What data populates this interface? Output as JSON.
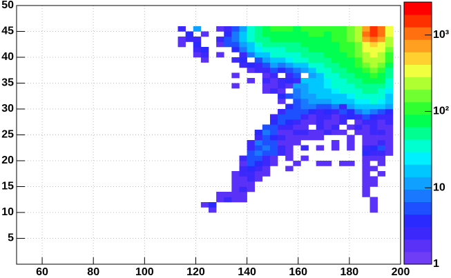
{
  "chart_data": {
    "type": "heatmap",
    "xlim": [
      50,
      200
    ],
    "ylim": [
      0,
      50
    ],
    "xticks": [
      60,
      80,
      100,
      120,
      140,
      160,
      180,
      200
    ],
    "yticks": [
      5,
      10,
      15,
      20,
      25,
      30,
      35,
      40,
      45,
      50
    ],
    "zlim": [
      1,
      2700
    ],
    "zlog": true,
    "zticks": [
      1,
      10,
      {
        "value": 100,
        "label": "10²"
      },
      {
        "value": 1000,
        "label": "10³"
      }
    ],
    "grid": true,
    "palette": [
      "#6e3df5",
      "#5a32f7",
      "#3c28fa",
      "#2a2aff",
      "#1f50ff",
      "#1a78ff",
      "#10a0ff",
      "#00c8ff",
      "#00f0ff",
      "#00ffd0",
      "#00ff90",
      "#00ff50",
      "#30ff30",
      "#70ff30",
      "#b0ff30",
      "#f0ff40",
      "#ffd030",
      "#ffa020",
      "#ff7010",
      "#ff3000",
      "#ff0000"
    ],
    "xbins": [
      113,
      116,
      119,
      122,
      125,
      128,
      131,
      134,
      137,
      140,
      143,
      146,
      149,
      152,
      155,
      158,
      161,
      164,
      167,
      170,
      173,
      176,
      179,
      182,
      185,
      188,
      191,
      194,
      197
    ],
    "ybins": [
      10,
      11,
      12,
      13,
      14,
      15,
      16,
      17,
      18,
      19,
      20,
      21,
      22,
      23,
      24,
      25,
      26,
      27,
      28,
      29,
      30,
      31,
      32,
      33,
      34,
      35,
      36,
      37,
      38,
      39,
      40,
      41,
      42,
      43,
      44,
      45,
      46
    ],
    "z": [
      [
        null,
        null,
        null,
        null,
        2,
        null,
        null,
        null,
        null,
        null,
        null,
        null,
        null,
        null,
        null,
        null,
        null,
        null,
        null,
        null,
        null,
        null,
        null,
        null,
        null,
        2,
        null,
        null
      ],
      [
        null,
        null,
        null,
        2,
        4,
        null,
        null,
        null,
        null,
        null,
        null,
        null,
        null,
        null,
        null,
        null,
        null,
        null,
        null,
        null,
        null,
        null,
        null,
        null,
        null,
        2,
        null,
        null
      ],
      [
        null,
        null,
        null,
        null,
        null,
        2,
        3,
        2,
        2,
        null,
        null,
        null,
        null,
        null,
        null,
        null,
        null,
        null,
        null,
        null,
        null,
        null,
        null,
        null,
        null,
        2,
        null,
        null
      ],
      [
        null,
        null,
        null,
        null,
        null,
        2,
        2,
        2,
        2,
        null,
        null,
        null,
        null,
        null,
        null,
        null,
        null,
        null,
        null,
        null,
        null,
        null,
        null,
        null,
        2,
        null,
        null,
        null
      ],
      [
        null,
        null,
        null,
        null,
        null,
        null,
        null,
        2,
        3,
        2,
        null,
        null,
        null,
        null,
        null,
        null,
        null,
        null,
        null,
        null,
        null,
        null,
        null,
        null,
        2,
        null,
        null,
        null
      ],
      [
        null,
        null,
        null,
        null,
        null,
        null,
        null,
        2,
        2,
        2,
        null,
        null,
        null,
        null,
        null,
        null,
        null,
        null,
        null,
        null,
        null,
        null,
        null,
        null,
        2,
        2,
        null,
        null
      ],
      [
        null,
        null,
        null,
        null,
        null,
        null,
        null,
        2,
        2,
        3,
        2,
        null,
        null,
        null,
        null,
        null,
        null,
        null,
        null,
        null,
        null,
        null,
        null,
        null,
        2,
        2,
        null,
        null
      ],
      [
        null,
        null,
        null,
        null,
        null,
        null,
        null,
        2,
        3,
        3,
        2,
        2,
        null,
        null,
        null,
        null,
        null,
        null,
        null,
        null,
        null,
        null,
        null,
        null,
        2,
        null,
        2,
        null
      ],
      [
        null,
        null,
        null,
        null,
        null,
        null,
        null,
        null,
        3,
        4,
        3,
        2,
        null,
        null,
        2,
        null,
        null,
        null,
        null,
        null,
        null,
        null,
        null,
        null,
        2,
        2,
        null,
        null
      ],
      [
        null,
        null,
        null,
        null,
        null,
        null,
        null,
        null,
        2,
        5,
        4,
        3,
        2,
        null,
        null,
        2,
        null,
        null,
        2,
        2,
        null,
        2,
        2,
        null,
        2,
        null,
        2,
        null
      ],
      [
        null,
        null,
        null,
        null,
        null,
        null,
        null,
        null,
        3,
        6,
        5,
        3,
        2,
        null,
        2,
        null,
        2,
        null,
        null,
        null,
        null,
        null,
        null,
        null,
        2,
        2,
        2,
        null
      ],
      [
        null,
        null,
        null,
        null,
        null,
        null,
        null,
        null,
        null,
        5,
        8,
        6,
        5,
        3,
        2,
        null,
        null,
        null,
        null,
        null,
        null,
        null,
        null,
        null,
        4,
        3,
        3,
        2
      ],
      [
        null,
        null,
        null,
        null,
        null,
        null,
        null,
        null,
        null,
        3,
        6,
        8,
        6,
        3,
        2,
        null,
        3,
        null,
        2,
        null,
        2,
        null,
        2,
        null,
        3,
        4,
        5,
        2
      ],
      [
        null,
        null,
        null,
        null,
        null,
        null,
        null,
        null,
        null,
        3,
        7,
        6,
        5,
        2,
        2,
        2,
        null,
        null,
        null,
        null,
        2,
        null,
        2,
        null,
        2,
        2,
        3,
        2
      ],
      [
        null,
        null,
        null,
        null,
        null,
        null,
        null,
        null,
        null,
        null,
        3,
        6,
        4,
        3,
        2,
        2,
        2,
        2,
        2,
        null,
        null,
        null,
        2,
        null,
        2,
        2,
        2,
        2
      ],
      [
        null,
        null,
        null,
        null,
        null,
        null,
        null,
        null,
        null,
        null,
        4,
        8,
        5,
        2,
        2,
        3,
        3,
        2,
        2,
        3,
        2,
        2,
        null,
        2,
        2,
        3,
        3,
        2
      ],
      [
        null,
        null,
        null,
        null,
        null,
        null,
        null,
        null,
        null,
        null,
        null,
        5,
        6,
        3,
        3,
        2,
        2,
        null,
        3,
        2,
        3,
        null,
        2,
        3,
        2,
        3,
        2,
        2
      ],
      [
        null,
        null,
        null,
        null,
        null,
        null,
        null,
        null,
        null,
        null,
        null,
        null,
        4,
        6,
        4,
        3,
        2,
        2,
        3,
        2,
        2,
        3,
        null,
        2,
        3,
        3,
        2,
        3
      ],
      [
        null,
        null,
        null,
        null,
        null,
        null,
        null,
        null,
        null,
        null,
        null,
        null,
        3,
        5,
        6,
        5,
        3,
        2,
        3,
        3,
        2,
        3,
        4,
        3,
        5,
        4,
        3,
        3
      ],
      [
        null,
        null,
        null,
        null,
        null,
        null,
        null,
        null,
        null,
        null,
        null,
        null,
        null,
        3,
        5,
        6,
        5,
        4,
        3,
        4,
        3,
        5,
        4,
        8,
        10,
        8,
        6,
        4
      ],
      [
        null,
        null,
        null,
        null,
        null,
        null,
        null,
        null,
        null,
        null,
        null,
        null,
        null,
        null,
        4,
        6,
        8,
        8,
        6,
        5,
        8,
        3,
        10,
        15,
        20,
        20,
        15,
        10
      ],
      [
        null,
        null,
        null,
        null,
        null,
        null,
        null,
        null,
        null,
        null,
        null,
        null,
        null,
        2,
        null,
        6,
        8,
        10,
        12,
        10,
        15,
        15,
        20,
        25,
        25,
        30,
        25,
        15
      ],
      [
        null,
        null,
        null,
        null,
        null,
        null,
        null,
        null,
        null,
        null,
        null,
        null,
        null,
        4,
        5,
        8,
        10,
        12,
        15,
        15,
        20,
        20,
        25,
        30,
        40,
        40,
        30,
        20
      ],
      [
        null,
        null,
        null,
        null,
        null,
        null,
        null,
        null,
        null,
        null,
        null,
        2,
        3,
        2,
        null,
        8,
        10,
        15,
        20,
        20,
        25,
        30,
        35,
        40,
        50,
        50,
        40,
        25
      ],
      [
        null,
        null,
        null,
        null,
        null,
        null,
        null,
        2,
        null,
        null,
        null,
        2,
        2,
        3,
        2,
        10,
        10,
        15,
        20,
        25,
        30,
        30,
        40,
        50,
        60,
        60,
        50,
        30
      ],
      [
        null,
        null,
        null,
        null,
        null,
        null,
        null,
        null,
        null,
        2,
        null,
        3,
        2,
        3,
        4,
        3,
        15,
        15,
        20,
        25,
        35,
        40,
        50,
        60,
        70,
        80,
        70,
        40
      ],
      [
        null,
        null,
        null,
        null,
        null,
        null,
        null,
        2,
        null,
        null,
        null,
        2,
        3,
        null,
        3,
        5,
        null,
        10,
        20,
        30,
        40,
        50,
        60,
        70,
        90,
        100,
        90,
        50
      ],
      [
        null,
        null,
        null,
        null,
        null,
        null,
        null,
        null,
        null,
        2,
        3,
        3,
        5,
        4,
        6,
        8,
        10,
        20,
        30,
        40,
        50,
        60,
        70,
        80,
        120,
        150,
        120,
        60
      ],
      [
        null,
        null,
        null,
        null,
        null,
        null,
        null,
        null,
        3,
        4,
        3,
        5,
        10,
        8,
        10,
        15,
        20,
        30,
        40,
        50,
        60,
        70,
        80,
        100,
        150,
        200,
        150,
        80
      ],
      [
        null,
        null,
        null,
        2,
        null,
        null,
        null,
        3,
        4,
        null,
        5,
        10,
        15,
        20,
        25,
        30,
        40,
        50,
        60,
        60,
        70,
        80,
        90,
        120,
        200,
        250,
        200,
        100
      ],
      [
        null,
        null,
        2,
        3,
        null,
        2,
        null,
        null,
        3,
        8,
        15,
        20,
        30,
        30,
        40,
        40,
        50,
        60,
        60,
        70,
        80,
        90,
        100,
        150,
        250,
        300,
        250,
        120
      ],
      [
        null,
        null,
        3,
        4,
        null,
        null,
        null,
        4,
        8,
        15,
        25,
        35,
        40,
        40,
        50,
        50,
        60,
        70,
        70,
        80,
        90,
        100,
        120,
        150,
        300,
        400,
        300,
        150
      ],
      [
        2,
        null,
        4,
        null,
        null,
        2,
        6,
        5,
        12,
        20,
        40,
        50,
        50,
        60,
        60,
        60,
        70,
        80,
        80,
        80,
        90,
        100,
        120,
        180,
        400,
        500,
        400,
        200
      ],
      [
        2,
        3,
        3,
        null,
        null,
        3,
        5,
        8,
        15,
        30,
        50,
        60,
        70,
        80,
        70,
        70,
        80,
        90,
        90,
        80,
        100,
        110,
        140,
        200,
        700,
        1000,
        800,
        250
      ],
      [
        null,
        4,
        null,
        2,
        null,
        null,
        4,
        8,
        15,
        40,
        60,
        80,
        90,
        90,
        80,
        80,
        90,
        100,
        100,
        90,
        100,
        120,
        150,
        250,
        1000,
        1500,
        1000,
        300
      ],
      [
        3,
        null,
        12,
        null,
        null,
        2,
        3,
        6,
        12,
        30,
        60,
        80,
        100,
        100,
        100,
        90,
        100,
        110,
        120,
        100,
        100,
        120,
        150,
        200,
        800,
        1500,
        1200,
        400
      ]
    ]
  }
}
